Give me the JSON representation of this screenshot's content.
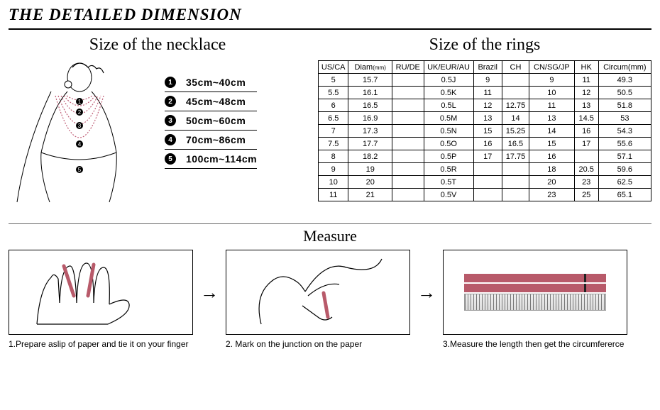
{
  "header": {
    "title": "THE DETAILED DIMENSION"
  },
  "necklace": {
    "title": "Size of the necklace",
    "rows": [
      {
        "num": "1",
        "val": "35cm~40cm"
      },
      {
        "num": "2",
        "val": "45cm~48cm"
      },
      {
        "num": "3",
        "val": "50cm~60cm"
      },
      {
        "num": "4",
        "val": "70cm~86cm"
      },
      {
        "num": "5",
        "val": "100cm~114cm"
      }
    ]
  },
  "rings": {
    "title": "Size of the rings",
    "columns": [
      "US/CA",
      "Diam(mm)",
      "RU/DE",
      "UK/EUR/AU",
      "Brazil",
      "CH",
      "CN/SG/JP",
      "HK",
      "Circum(mm)"
    ],
    "rows": [
      [
        "5",
        "15.7",
        "",
        "0.5J",
        "9",
        "",
        "9",
        "11",
        "49.3"
      ],
      [
        "5.5",
        "16.1",
        "",
        "0.5K",
        "11",
        "",
        "10",
        "12",
        "50.5"
      ],
      [
        "6",
        "16.5",
        "",
        "0.5L",
        "12",
        "12.75",
        "11",
        "13",
        "51.8"
      ],
      [
        "6.5",
        "16.9",
        "",
        "0.5M",
        "13",
        "14",
        "13",
        "14.5",
        "53"
      ],
      [
        "7",
        "17.3",
        "",
        "0.5N",
        "15",
        "15.25",
        "14",
        "16",
        "54.3"
      ],
      [
        "7.5",
        "17.7",
        "",
        "0.5O",
        "16",
        "16.5",
        "15",
        "17",
        "55.6"
      ],
      [
        "8",
        "18.2",
        "",
        "0.5P",
        "17",
        "17.75",
        "16",
        "",
        "57.1"
      ],
      [
        "9",
        "19",
        "",
        "0.5R",
        "",
        "",
        "18",
        "20.5",
        "59.6"
      ],
      [
        "10",
        "20",
        "",
        "0.5T",
        "",
        "",
        "20",
        "23",
        "62.5"
      ],
      [
        "11",
        "21",
        "",
        "0.5V",
        "",
        "",
        "23",
        "25",
        "65.1"
      ]
    ],
    "colwidths": [
      "40",
      "58",
      "42",
      "66",
      "38",
      "36",
      "60",
      "32",
      "70"
    ]
  },
  "measure": {
    "title": "Measure",
    "steps": [
      "1.Prepare aslip of paper and tie it on your finger",
      "2. Mark on the junction on the paper",
      "3.Measure the length then get the circumfererce"
    ]
  },
  "colors": {
    "accent": "#b85a6a",
    "line": "#000000"
  }
}
